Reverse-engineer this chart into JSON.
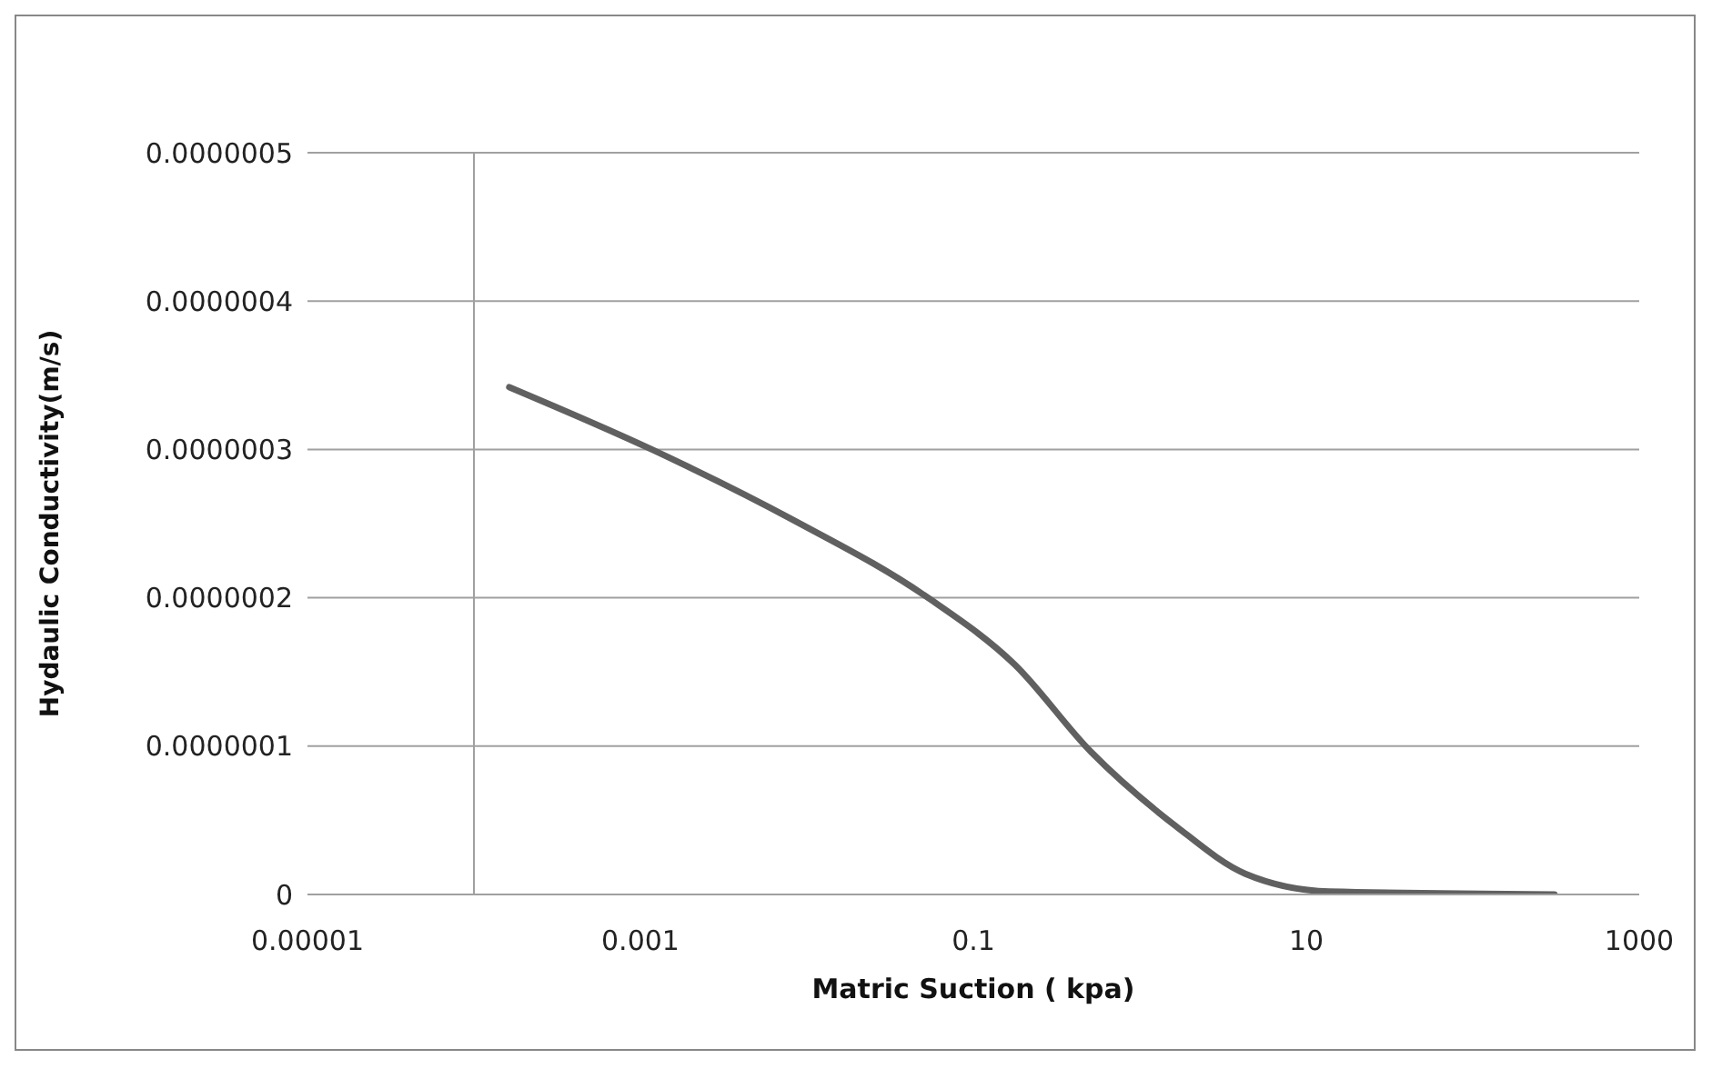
{
  "chart_data": {
    "type": "line",
    "xlabel": "Matric Suction ( kpa)",
    "ylabel": "Hydaulic Conductivity(m/s)",
    "log": "x",
    "x": [
      0.000163,
      0.00117,
      0.0081,
      0.055,
      0.177,
      0.51,
      1.65,
      4.3,
      13.8,
      310
    ],
    "series": [
      {
        "color": "#606060",
        "values": [
          3.42e-07,
          3e-07,
          2.53e-07,
          1.99e-07,
          1.55e-07,
          9.6e-08,
          4.6e-08,
          1.4e-08,
          2e-09,
          0
        ]
      }
    ],
    "xlim": [
      1e-05,
      1000
    ],
    "xticks": [
      {
        "value": 1e-05,
        "label": "0.00001"
      },
      {
        "value": 0.001,
        "label": "0.001"
      },
      {
        "value": 0.1,
        "label": "0.1"
      },
      {
        "value": 10,
        "label": "10"
      },
      {
        "value": 1000,
        "label": "1000"
      }
    ],
    "ylim": [
      0,
      5e-07
    ],
    "yticks": [
      {
        "value": 0,
        "label": "0"
      },
      {
        "value": 1e-07,
        "label": "0.0000001"
      },
      {
        "value": 2e-07,
        "label": "0.0000002"
      },
      {
        "value": 3e-07,
        "label": "0.0000003"
      },
      {
        "value": 4e-07,
        "label": "0.0000004"
      },
      {
        "value": 5e-07,
        "label": "0.0000005"
      }
    ],
    "ref_lines": [
      {
        "axis": "x",
        "value": 0.0001,
        "color": "#a0a0a0"
      }
    ],
    "grid": "y",
    "legend": false,
    "marker": "none",
    "line_style": "solid"
  }
}
